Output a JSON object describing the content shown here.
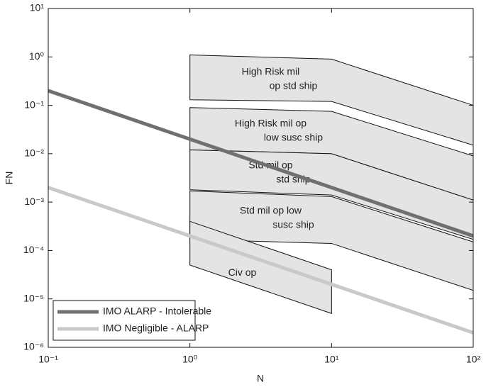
{
  "chart_data": {
    "type": "fn-curve",
    "xlabel": "N",
    "ylabel": "FN",
    "xscale": "log",
    "yscale": "log",
    "xlim": [
      0.1,
      100
    ],
    "ylim": [
      1e-06,
      10
    ],
    "xticks": [
      {
        "value": 0.1,
        "label": "10⁻¹"
      },
      {
        "value": 1,
        "label": "10⁰"
      },
      {
        "value": 10,
        "label": "10¹"
      },
      {
        "value": 100,
        "label": "10²"
      }
    ],
    "yticks": [
      {
        "value": 1e-06,
        "label": "10⁻⁶"
      },
      {
        "value": 1e-05,
        "label": "10⁻⁵"
      },
      {
        "value": 0.0001,
        "label": "10⁻⁴"
      },
      {
        "value": 0.001,
        "label": "10⁻³"
      },
      {
        "value": 0.01,
        "label": "10⁻²"
      },
      {
        "value": 0.1,
        "label": "10⁻¹"
      },
      {
        "value": 1,
        "label": "10⁰"
      },
      {
        "value": 10,
        "label": "10¹"
      }
    ],
    "band_color": "#e4e4e4",
    "bands": [
      {
        "label": [
          "High Risk mil",
          "op std ship"
        ],
        "x": [
          1,
          10,
          100
        ],
        "upper": [
          1.1,
          0.9,
          0.1
        ],
        "lower": [
          0.13,
          0.12,
          0.015
        ]
      },
      {
        "label": [
          "High Risk mil op",
          "low susc ship"
        ],
        "x": [
          1,
          10,
          100
        ],
        "upper": [
          0.09,
          0.075,
          0.009
        ],
        "lower": [
          0.012,
          0.01,
          0.0011
        ]
      },
      {
        "label": [
          "Std mil op",
          "std ship"
        ],
        "x": [
          1,
          10,
          100
        ],
        "upper": [
          0.012,
          0.01,
          0.0011
        ],
        "lower": [
          0.0018,
          0.0014,
          0.00017
        ]
      },
      {
        "label": [
          "Std mil op low",
          "susc ship"
        ],
        "x": [
          1,
          10,
          100
        ],
        "upper": [
          0.0017,
          0.0013,
          0.00015
        ],
        "lower": [
          0.00017,
          0.00014,
          1.5e-05
        ]
      },
      {
        "label": [
          "Civ op"
        ],
        "x": [
          1,
          10
        ],
        "upper": [
          0.0004,
          4e-05
        ],
        "lower": [
          5e-05,
          5e-06
        ]
      }
    ],
    "series": [
      {
        "name": "IMO ALARP - Intolerable",
        "color": "#707070",
        "x": [
          0.1,
          100
        ],
        "values": [
          0.2,
          0.0002
        ]
      },
      {
        "name": "IMO Negligible - ALARP",
        "color": "#c9c9c9",
        "x": [
          0.1,
          100
        ],
        "values": [
          0.002,
          2e-06
        ]
      }
    ],
    "legend": "lower left"
  }
}
